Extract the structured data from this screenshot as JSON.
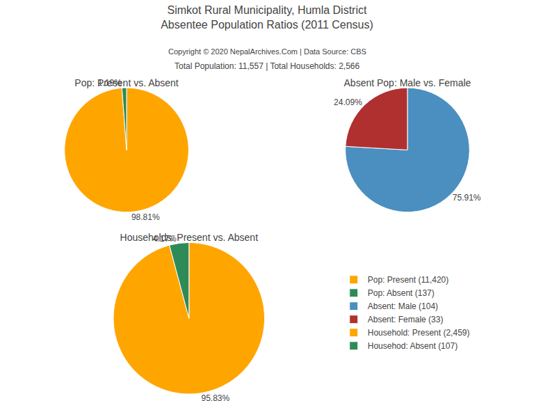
{
  "title": [
    "Simkot Rural Municipality, Humla District",
    "Absentee Population Ratios (2011 Census)"
  ],
  "annotations": [
    "Copyright © 2020 NepalArchives.Com | Data Source: CBS",
    "Total Population: 11,557 | Total Households: 2,566"
  ],
  "legend": "right",
  "chart_data": [
    {
      "type": "pie",
      "title": "Pop: Present vs. Absent",
      "categories": [
        "Pop: Present (11,420)",
        "Pop: Absent (137)"
      ],
      "values": [
        98.81,
        1.19
      ],
      "value_labels": [
        "98.81%",
        "1.19%"
      ],
      "colors": [
        "#FFA500",
        "#2E8B57"
      ],
      "data_labels": true
    },
    {
      "type": "pie",
      "title": "Absent Pop: Male vs. Female",
      "categories": [
        "Absent: Male (104)",
        "Absent: Female (33)"
      ],
      "values": [
        75.91,
        24.09
      ],
      "value_labels": [
        "75.91%",
        "24.09%"
      ],
      "colors": [
        "#4A8FC0",
        "#B03030"
      ],
      "data_labels": true
    },
    {
      "type": "pie",
      "title": "Households: Present vs. Absent",
      "categories": [
        "Household: Present (2,459)",
        "Househod: Absent (107)"
      ],
      "values": [
        95.83,
        4.17
      ],
      "value_labels": [
        "95.83%",
        "4.17%"
      ],
      "colors": [
        "#FFA500",
        "#2E8B57"
      ],
      "data_labels": true
    }
  ]
}
